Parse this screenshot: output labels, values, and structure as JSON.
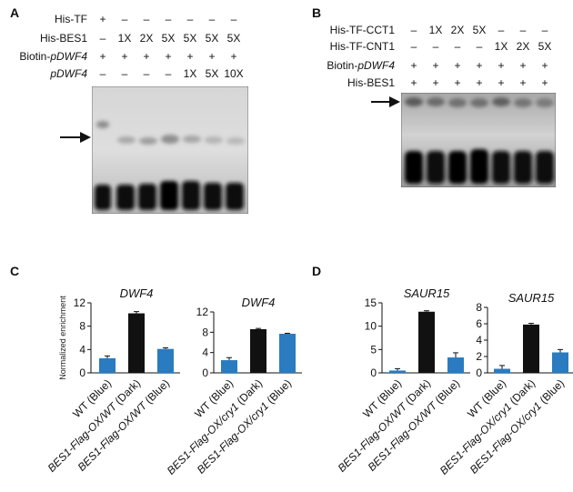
{
  "panels": {
    "A": {
      "letter": "A",
      "row_labels": [
        "His-TF",
        "His-BES1",
        "Biotin-pDWF4",
        "pDWF4"
      ],
      "rows": [
        [
          "+",
          "–",
          "–",
          "–",
          "–",
          "–",
          "–"
        ],
        [
          "–",
          "1X",
          "2X",
          "5X",
          "5X",
          "5X",
          "5X"
        ],
        [
          "+",
          "+",
          "+",
          "+",
          "+",
          "+",
          "+"
        ],
        [
          "–",
          "–",
          "–",
          "–",
          "1X",
          "5X",
          "10X"
        ]
      ]
    },
    "B": {
      "letter": "B",
      "row_labels": [
        "His-TF-CCT1",
        "His-TF-CNT1",
        "Biotin-pDWF4",
        "His-BES1"
      ],
      "rows": [
        [
          "–",
          "1X",
          "2X",
          "5X",
          "–",
          "–",
          "–"
        ],
        [
          "–",
          "–",
          "–",
          "–",
          "1X",
          "2X",
          "5X"
        ],
        [
          "+",
          "+",
          "+",
          "+",
          "+",
          "+",
          "+"
        ],
        [
          "+",
          "+",
          "+",
          "+",
          "+",
          "+",
          "+"
        ]
      ]
    },
    "C": {
      "letter": "C"
    },
    "D": {
      "letter": "D"
    }
  },
  "chart_data": [
    {
      "type": "bar",
      "panel": "C",
      "title": "DWF4",
      "ylabel": "Normalized enrichment",
      "ylim": [
        0,
        12
      ],
      "yticks": [
        "0",
        "4",
        "8",
        "12"
      ],
      "categories": [
        "WT (Blue)",
        "BES1-Flag-OX/WT (Dark)",
        "BES1-Flag-OX/WT (Blue)"
      ],
      "values": [
        2.5,
        10.2,
        4.1
      ],
      "errors": [
        0.4,
        0.3,
        0.2
      ],
      "colors": [
        "#2a7bc0",
        "#111111",
        "#2a7bc0"
      ]
    },
    {
      "type": "bar",
      "panel": "C",
      "title": "DWF4",
      "ylabel": "",
      "ylim": [
        0,
        12
      ],
      "yticks": [
        "0",
        "4",
        "8",
        "12"
      ],
      "categories": [
        "WT (Blue)",
        "BES1-Flag-OX/cry1 (Dark)",
        "BES1-Flag-OX/cry1 (Blue)"
      ],
      "values": [
        2.5,
        8.6,
        7.7
      ],
      "errors": [
        0.5,
        0.15,
        0.1
      ],
      "colors": [
        "#2a7bc0",
        "#111111",
        "#2a7bc0"
      ]
    },
    {
      "type": "bar",
      "panel": "D",
      "title": "SAUR15",
      "ylabel": "",
      "ylim": [
        0,
        15
      ],
      "yticks": [
        "0",
        "5",
        "10",
        "15"
      ],
      "categories": [
        "WT (Blue)",
        "BES1-Flag-OX/WT (Dark)",
        "BES1-Flag-OX/WT (Blue)"
      ],
      "values": [
        0.5,
        13.1,
        3.3
      ],
      "errors": [
        0.4,
        0.2,
        1.0
      ],
      "colors": [
        "#2a7bc0",
        "#111111",
        "#2a7bc0"
      ]
    },
    {
      "type": "bar",
      "panel": "D",
      "title": "SAUR15",
      "ylabel": "",
      "ylim": [
        0,
        8
      ],
      "yticks": [
        "0",
        "2",
        "4",
        "6",
        "8"
      ],
      "categories": [
        "WT (Blue)",
        "BES1-Flag-OX/cry1 (Dark)",
        "BES1-Flag-OX/cry1 (Blue)"
      ],
      "values": [
        0.5,
        5.9,
        2.5
      ],
      "errors": [
        0.4,
        0.15,
        0.35
      ],
      "colors": [
        "#2a7bc0",
        "#111111",
        "#2a7bc0"
      ]
    }
  ]
}
